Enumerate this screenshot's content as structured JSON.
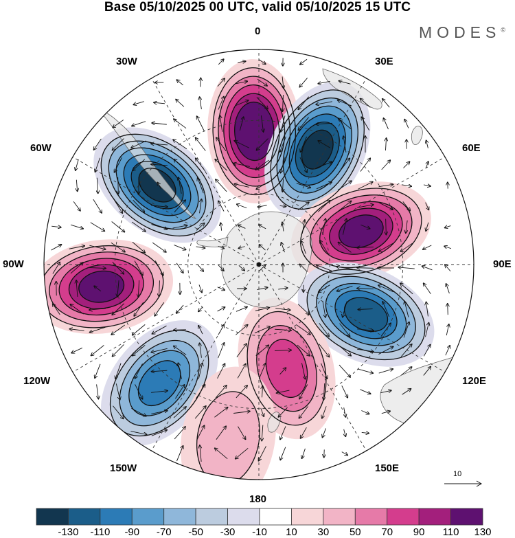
{
  "title": "Base 05/10/2025 00 UTC, valid 05/10/2025 15 UTC",
  "brand": "MODES",
  "brand_mark": "©",
  "longitude_labels": {
    "lon_0": "0",
    "lon_30e": "30E",
    "lon_60e": "60E",
    "lon_90e": "90E",
    "lon_120e": "120E",
    "lon_150e": "150E",
    "lon_180": "180",
    "lon_150w": "150W",
    "lon_120w": "120W",
    "lon_90w": "90W",
    "lon_60w": "60W",
    "lon_30w": "30W"
  },
  "reference_vector": {
    "label": "10"
  },
  "colorbar": {
    "ticks": [
      "-130",
      "-110",
      "-90",
      "-70",
      "-50",
      "-30",
      "-10",
      "10",
      "30",
      "50",
      "70",
      "90",
      "110",
      "130"
    ],
    "colors": [
      "#12364f",
      "#1b5d89",
      "#2c7bb6",
      "#5a9ccc",
      "#8fb7da",
      "#bcccdf",
      "#dcdcec",
      "#ffffff",
      "#f7d6d8",
      "#f2b4c6",
      "#e67aa8",
      "#d43d8d",
      "#a31f7c",
      "#5e1170"
    ]
  },
  "anomaly_centers": [
    {
      "name": "center-0",
      "lon_deg": -2,
      "distance_frac": 0.62,
      "value": 140
    },
    {
      "name": "center-25e",
      "lon_deg": 27,
      "distance_frac": 0.6,
      "value": -140
    },
    {
      "name": "center-55w",
      "lon_deg": -52,
      "distance_frac": 0.6,
      "value": -140
    },
    {
      "name": "center-72e",
      "lon_deg": 72,
      "distance_frac": 0.5,
      "value": 120
    },
    {
      "name": "center-98w",
      "lon_deg": -98,
      "distance_frac": 0.74,
      "value": 120
    },
    {
      "name": "center-115e",
      "lon_deg": 115,
      "distance_frac": 0.55,
      "value": -110
    },
    {
      "name": "center-140w",
      "lon_deg": -140,
      "distance_frac": 0.72,
      "value": -100
    },
    {
      "name": "center-165e",
      "lon_deg": 165,
      "distance_frac": 0.5,
      "value": 85
    },
    {
      "name": "center-170w",
      "lon_deg": -170,
      "distance_frac": 0.82,
      "value": 40
    }
  ]
}
